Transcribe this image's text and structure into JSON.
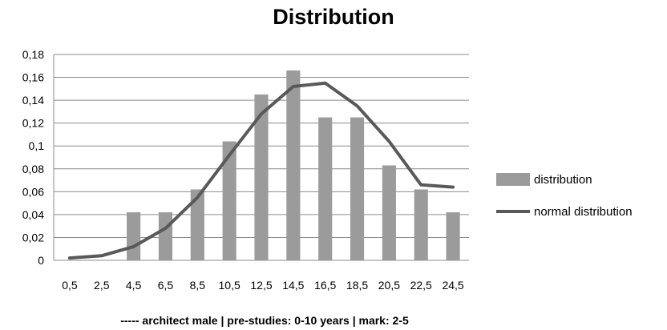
{
  "chart_data": {
    "type": "bar",
    "title": "Distribution",
    "xlabel": "----- architect male | pre-studies: 0-10 years | mark: 2-5",
    "ylabel": "",
    "ylim": [
      0,
      0.18
    ],
    "yticks": [
      "0",
      "0,02",
      "0,04",
      "0,06",
      "0,08",
      "0,1",
      "0,12",
      "0,14",
      "0,16",
      "0,18"
    ],
    "categories": [
      "0,5",
      "2,5",
      "4,5",
      "6,5",
      "8,5",
      "10,5",
      "12,5",
      "14,5",
      "16,5",
      "18,5",
      "20,5",
      "22,5",
      "24,5"
    ],
    "grid": true,
    "legend_position": "right",
    "series": [
      {
        "name": "distribution",
        "kind": "bar",
        "color": "#9b9b9b",
        "values": [
          0,
          0,
          0.042,
          0.042,
          0.062,
          0.104,
          0.145,
          0.166,
          0.125,
          0.125,
          0.083,
          0.062,
          0.042
        ]
      },
      {
        "name": "normal distribution",
        "kind": "line",
        "color": "#595959",
        "values": [
          0.002,
          0.004,
          0.012,
          0.028,
          0.055,
          0.092,
          0.128,
          0.152,
          0.155,
          0.135,
          0.104,
          0.066,
          0.064
        ]
      }
    ]
  }
}
